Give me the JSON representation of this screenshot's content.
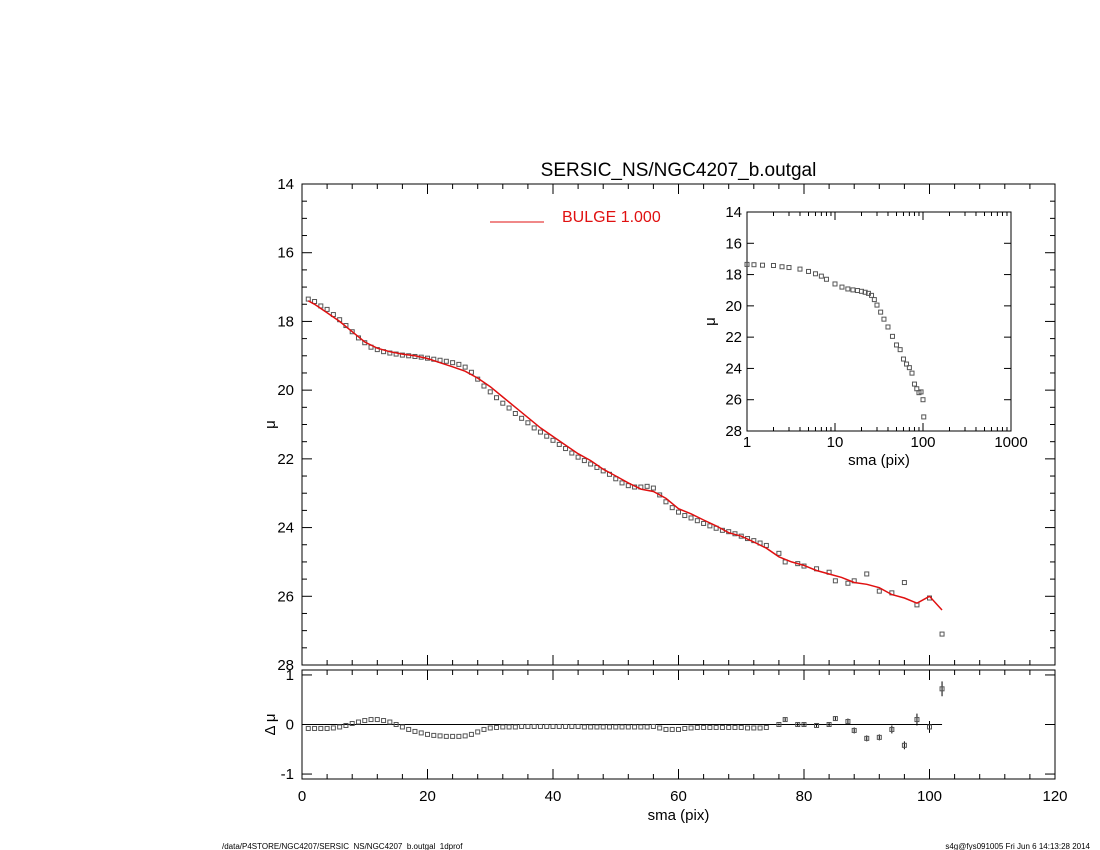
{
  "footer": {
    "left": "/data/P4STORE/NGC4207/SERSIC_NS/NGC4207_b.outgal_1dprof",
    "right": "s4g@fys091005  Fri Jun  6 14:13:28 2014"
  },
  "colors": {
    "model": "#e01010",
    "points": "#555555",
    "axes": "#000000"
  },
  "chart_data": [
    {
      "id": "main",
      "type": "scatter",
      "title": "SERSIC_NS/NGC4207_b.outgal",
      "xlabel": "",
      "ylabel": "μ",
      "xlim": [
        0,
        120
      ],
      "ylim": [
        28,
        14
      ],
      "y_inverted": true,
      "xticks": [
        0,
        20,
        40,
        60,
        80,
        100,
        120
      ],
      "yticks": [
        14,
        16,
        18,
        20,
        22,
        24,
        26,
        28
      ],
      "legend": {
        "label": "BULGE  1.000",
        "placement": "top-center"
      },
      "series": [
        {
          "name": "BULGE  1.000",
          "kind": "line",
          "x": [
            1,
            2,
            4,
            6,
            8,
            10,
            12,
            14,
            16,
            18,
            20,
            22,
            24,
            26,
            28,
            30,
            32,
            34,
            36,
            38,
            40,
            42,
            44,
            46,
            48,
            50,
            52,
            54,
            56,
            58,
            60,
            62,
            64,
            66,
            68,
            70,
            72,
            74,
            76,
            78,
            80,
            82,
            84,
            86,
            88,
            90,
            92,
            94,
            96,
            98,
            100,
            102
          ],
          "y": [
            17.4,
            17.5,
            17.75,
            18.0,
            18.3,
            18.6,
            18.78,
            18.88,
            18.95,
            19.0,
            19.08,
            19.2,
            19.32,
            19.45,
            19.65,
            19.9,
            20.2,
            20.5,
            20.8,
            21.1,
            21.35,
            21.6,
            21.85,
            22.05,
            22.3,
            22.5,
            22.7,
            22.88,
            22.95,
            23.15,
            23.45,
            23.6,
            23.78,
            23.95,
            24.15,
            24.25,
            24.42,
            24.6,
            24.85,
            25.0,
            25.1,
            25.25,
            25.35,
            25.45,
            25.6,
            25.65,
            25.75,
            25.95,
            26.05,
            26.2,
            26.0,
            26.4
          ]
        },
        {
          "name": "",
          "kind": "points",
          "x": [
            1,
            2,
            3,
            4,
            5,
            6,
            7,
            8,
            9,
            10,
            11,
            12,
            13,
            14,
            15,
            16,
            17,
            18,
            19,
            20,
            21,
            22,
            23,
            24,
            25,
            26,
            27,
            28,
            29,
            30,
            31,
            32,
            33,
            34,
            35,
            36,
            37,
            38,
            39,
            40,
            41,
            42,
            43,
            44,
            45,
            46,
            47,
            48,
            49,
            50,
            51,
            52,
            53,
            54,
            55,
            56,
            57,
            58,
            59,
            60,
            61,
            62,
            63,
            64,
            65,
            66,
            67,
            68,
            69,
            70,
            71,
            72,
            73,
            74,
            76,
            77,
            79,
            80,
            82,
            84,
            85,
            87,
            88,
            90,
            92,
            94,
            96,
            98,
            100,
            102
          ],
          "y": [
            17.35,
            17.42,
            17.55,
            17.65,
            17.8,
            17.95,
            18.12,
            18.3,
            18.48,
            18.62,
            18.75,
            18.82,
            18.88,
            18.92,
            18.95,
            18.98,
            19.0,
            19.02,
            19.04,
            19.07,
            19.1,
            19.13,
            19.16,
            19.2,
            19.25,
            19.33,
            19.48,
            19.68,
            19.88,
            20.05,
            20.22,
            20.38,
            20.52,
            20.68,
            20.82,
            20.95,
            21.1,
            21.22,
            21.34,
            21.46,
            21.58,
            21.7,
            21.83,
            21.95,
            22.05,
            22.15,
            22.25,
            22.35,
            22.45,
            22.58,
            22.7,
            22.78,
            22.82,
            22.82,
            22.8,
            22.85,
            23.05,
            23.25,
            23.42,
            23.55,
            23.65,
            23.72,
            23.8,
            23.88,
            23.95,
            24.02,
            24.08,
            24.12,
            24.18,
            24.25,
            24.32,
            24.38,
            24.45,
            24.52,
            24.75,
            25.0,
            25.05,
            25.12,
            25.2,
            25.3,
            25.55,
            25.62,
            25.55,
            25.35,
            25.85,
            25.9,
            25.6,
            26.25,
            26.05,
            27.1
          ]
        }
      ]
    },
    {
      "id": "inset",
      "type": "scatter",
      "xlabel": "sma (pix)",
      "ylabel": "μ",
      "xscale": "log",
      "xlim": [
        1,
        1000
      ],
      "ylim": [
        28,
        14
      ],
      "y_inverted": true,
      "xticks": [
        1,
        10,
        100,
        1000
      ],
      "yticks": [
        14,
        16,
        18,
        20,
        22,
        24,
        26,
        28
      ],
      "series": [
        {
          "name": "",
          "kind": "points",
          "x": [
            1.0,
            1.2,
            1.5,
            2.0,
            2.5,
            3.0,
            4.0,
            5.0,
            6.0,
            7.0,
            8.0,
            10.0,
            12.0,
            14.0,
            16.0,
            18.0,
            20.0,
            22.0,
            24.0,
            26.0,
            28.0,
            30.0,
            33.0,
            36.0,
            40.0,
            45.0,
            50.0,
            55.0,
            60.0,
            65.0,
            70.0,
            75.0,
            80.0,
            85.0,
            90.0,
            95.0,
            100.0,
            102.0
          ],
          "y": [
            17.35,
            17.37,
            17.4,
            17.42,
            17.5,
            17.55,
            17.65,
            17.8,
            17.95,
            18.1,
            18.3,
            18.6,
            18.8,
            18.92,
            18.98,
            19.02,
            19.07,
            19.13,
            19.2,
            19.33,
            19.6,
            19.95,
            20.4,
            20.85,
            21.35,
            21.95,
            22.5,
            22.8,
            23.4,
            23.72,
            23.95,
            24.3,
            25.0,
            25.3,
            25.55,
            25.5,
            26.0,
            27.1
          ]
        }
      ]
    },
    {
      "id": "residual",
      "type": "scatter",
      "xlabel": "sma (pix)",
      "ylabel": "Δ μ",
      "xlim": [
        0,
        120
      ],
      "ylim": [
        -1.1,
        1.1
      ],
      "xticks": [
        0,
        20,
        40,
        60,
        80,
        100,
        120
      ],
      "yticks": [
        -1,
        0,
        1
      ],
      "series": [
        {
          "name": "",
          "kind": "points_with_errors",
          "x": [
            1,
            2,
            3,
            4,
            5,
            6,
            7,
            8,
            9,
            10,
            11,
            12,
            13,
            14,
            15,
            16,
            17,
            18,
            19,
            20,
            21,
            22,
            23,
            24,
            25,
            26,
            27,
            28,
            29,
            30,
            31,
            32,
            33,
            34,
            35,
            36,
            37,
            38,
            39,
            40,
            41,
            42,
            43,
            44,
            45,
            46,
            47,
            48,
            49,
            50,
            51,
            52,
            53,
            54,
            55,
            56,
            57,
            58,
            59,
            60,
            61,
            62,
            63,
            64,
            65,
            66,
            67,
            68,
            69,
            70,
            71,
            72,
            73,
            74,
            76,
            77,
            79,
            80,
            82,
            84,
            85,
            87,
            88,
            90,
            92,
            94,
            96,
            98,
            100,
            102
          ],
          "y": [
            -0.08,
            -0.08,
            -0.08,
            -0.08,
            -0.07,
            -0.05,
            -0.02,
            0.02,
            0.05,
            0.08,
            0.1,
            0.1,
            0.08,
            0.05,
            0.0,
            -0.05,
            -0.1,
            -0.14,
            -0.17,
            -0.2,
            -0.22,
            -0.23,
            -0.24,
            -0.24,
            -0.24,
            -0.23,
            -0.2,
            -0.15,
            -0.1,
            -0.07,
            -0.06,
            -0.05,
            -0.05,
            -0.05,
            -0.04,
            -0.04,
            -0.04,
            -0.04,
            -0.04,
            -0.04,
            -0.04,
            -0.04,
            -0.04,
            -0.04,
            -0.05,
            -0.05,
            -0.05,
            -0.05,
            -0.05,
            -0.05,
            -0.05,
            -0.05,
            -0.05,
            -0.05,
            -0.05,
            -0.04,
            -0.07,
            -0.1,
            -0.1,
            -0.1,
            -0.08,
            -0.07,
            -0.06,
            -0.06,
            -0.06,
            -0.06,
            -0.06,
            -0.06,
            -0.06,
            -0.06,
            -0.07,
            -0.07,
            -0.07,
            -0.06,
            0.0,
            0.1,
            0.0,
            0.0,
            -0.02,
            0.0,
            0.12,
            0.06,
            -0.12,
            -0.28,
            -0.26,
            -0.1,
            -0.42,
            0.1,
            -0.05,
            0.72
          ],
          "err": [
            0.01,
            0.01,
            0.01,
            0.01,
            0.01,
            0.01,
            0.01,
            0.01,
            0.01,
            0.01,
            0.01,
            0.01,
            0.01,
            0.01,
            0.01,
            0.01,
            0.01,
            0.01,
            0.01,
            0.01,
            0.01,
            0.01,
            0.01,
            0.01,
            0.01,
            0.01,
            0.01,
            0.01,
            0.01,
            0.01,
            0.01,
            0.01,
            0.01,
            0.01,
            0.01,
            0.01,
            0.01,
            0.01,
            0.01,
            0.01,
            0.01,
            0.01,
            0.01,
            0.01,
            0.01,
            0.01,
            0.01,
            0.01,
            0.01,
            0.01,
            0.01,
            0.01,
            0.01,
            0.01,
            0.01,
            0.01,
            0.01,
            0.01,
            0.01,
            0.01,
            0.01,
            0.01,
            0.01,
            0.01,
            0.01,
            0.01,
            0.01,
            0.01,
            0.01,
            0.01,
            0.01,
            0.01,
            0.01,
            0.01,
            0.02,
            0.03,
            0.03,
            0.03,
            0.03,
            0.04,
            0.05,
            0.06,
            0.06,
            0.06,
            0.06,
            0.08,
            0.08,
            0.12,
            0.12,
            0.15
          ]
        }
      ]
    }
  ]
}
